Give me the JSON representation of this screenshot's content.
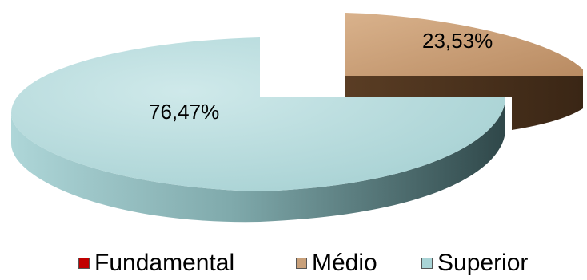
{
  "chart_data": {
    "type": "pie",
    "style": "3d-exploded",
    "categories": [
      "Fundamental",
      "Médio",
      "Superior"
    ],
    "values": [
      0,
      23.53,
      76.47
    ],
    "data_labels": [
      "",
      "23,53%",
      "76,47%"
    ],
    "colors": [
      "#c00000",
      "#c8a07a",
      "#a9d4d6"
    ],
    "legend_position": "bottom"
  },
  "legend": {
    "items": [
      {
        "label": "Fundamental",
        "color": "#c00000"
      },
      {
        "label": "Médio",
        "color": "#c8a07a"
      },
      {
        "label": "Superior",
        "color": "#a9d4d6"
      }
    ]
  }
}
